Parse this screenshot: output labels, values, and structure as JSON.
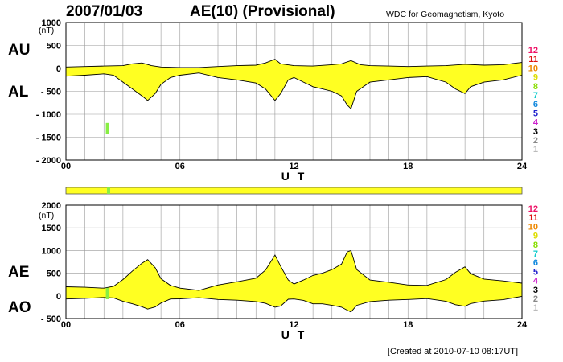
{
  "header": {
    "date": "2007/01/03",
    "title": "AE(10) (Provisional)",
    "source": "WDC for Geomagnetism, Kyoto"
  },
  "footer": {
    "created": "[Created at 2010-07-10 08:17UT]"
  },
  "colors": {
    "fill": "#ffff22",
    "bar": "#ffff22",
    "highlight": "#88ee44",
    "grid": "#999999",
    "line": "#000000"
  },
  "chart_data": [
    {
      "type": "area",
      "labels": {
        "upper": "AU",
        "lower": "AL",
        "unit": "(nT)",
        "xlabel": "U T"
      },
      "xlim": [
        0,
        24
      ],
      "ylim": [
        -2000,
        1000
      ],
      "x_ticks": [
        "00",
        "06",
        "12",
        "18",
        "24"
      ],
      "y_ticks": [
        {
          "v": 1000,
          "t": "1000"
        },
        {
          "v": 500,
          "t": "500"
        },
        {
          "v": 0,
          "t": "0"
        },
        {
          "v": -500,
          "t": "- 500"
        },
        {
          "v": -1000,
          "t": "- 1000"
        },
        {
          "v": -1500,
          "t": "- 1500"
        },
        {
          "v": -2000,
          "t": "- 2000"
        }
      ],
      "series": [
        {
          "name": "AU",
          "x": [
            0,
            1,
            2,
            3,
            3.5,
            4,
            4.5,
            5,
            6,
            7,
            8,
            9,
            10,
            10.5,
            11,
            11.3,
            12,
            13,
            14,
            14.5,
            15,
            15.5,
            16,
            17,
            18,
            19,
            20,
            21,
            22,
            23,
            24
          ],
          "y": [
            30,
            40,
            50,
            60,
            100,
            120,
            60,
            30,
            20,
            20,
            40,
            60,
            70,
            120,
            200,
            100,
            60,
            50,
            80,
            100,
            170,
            80,
            60,
            50,
            40,
            50,
            60,
            90,
            70,
            80,
            130
          ]
        },
        {
          "name": "AL",
          "x": [
            0,
            1,
            2,
            2.5,
            3,
            3.5,
            4,
            4.3,
            4.7,
            5,
            5.5,
            6,
            7,
            8,
            9,
            10,
            10.5,
            11,
            11.3,
            11.7,
            12,
            12.5,
            13,
            13.5,
            14,
            14.5,
            14.8,
            15,
            15.3,
            16,
            17,
            18,
            19,
            20,
            20.5,
            21,
            21.3,
            22,
            23,
            24
          ],
          "y": [
            -170,
            -150,
            -120,
            -150,
            -300,
            -450,
            -600,
            -700,
            -550,
            -350,
            -200,
            -150,
            -100,
            -200,
            -250,
            -320,
            -450,
            -700,
            -550,
            -250,
            -200,
            -300,
            -400,
            -450,
            -500,
            -600,
            -800,
            -880,
            -500,
            -300,
            -250,
            -200,
            -180,
            -300,
            -450,
            -550,
            -400,
            -300,
            -250,
            -150
          ]
        }
      ]
    },
    {
      "type": "area",
      "labels": {
        "upper": "AE",
        "lower": "AO",
        "unit": "(nT)",
        "xlabel": "U T"
      },
      "xlim": [
        0,
        24
      ],
      "ylim": [
        -500,
        2000
      ],
      "x_ticks": [
        "00",
        "06",
        "12",
        "18",
        "24"
      ],
      "y_ticks": [
        {
          "v": 2000,
          "t": "2000"
        },
        {
          "v": 1500,
          "t": "1500"
        },
        {
          "v": 1000,
          "t": "1000"
        },
        {
          "v": 500,
          "t": "500"
        },
        {
          "v": 0,
          "t": "0"
        },
        {
          "v": -500,
          "t": "- 500"
        }
      ],
      "series": [
        {
          "name": "AE",
          "x": [
            0,
            1,
            2,
            2.5,
            3,
            3.5,
            4,
            4.3,
            4.7,
            5,
            5.5,
            6,
            7,
            8,
            9,
            10,
            10.5,
            11,
            11.3,
            11.7,
            12,
            12.5,
            13,
            13.5,
            14,
            14.5,
            14.8,
            15,
            15.3,
            16,
            17,
            18,
            19,
            20,
            20.5,
            21,
            21.3,
            22,
            23,
            24
          ],
          "y": [
            200,
            190,
            170,
            210,
            360,
            550,
            720,
            800,
            620,
            380,
            230,
            170,
            120,
            240,
            310,
            390,
            570,
            900,
            650,
            350,
            260,
            350,
            450,
            500,
            580,
            700,
            970,
            1000,
            580,
            350,
            300,
            240,
            230,
            360,
            520,
            640,
            490,
            370,
            330,
            280
          ]
        },
        {
          "name": "AO",
          "x": [
            0,
            1,
            2,
            2.5,
            3,
            3.5,
            4,
            4.3,
            4.7,
            5,
            5.5,
            6,
            7,
            8,
            9,
            10,
            10.5,
            11,
            11.3,
            11.7,
            12,
            12.5,
            13,
            13.5,
            14,
            14.5,
            14.8,
            15,
            15.3,
            16,
            17,
            18,
            19,
            20,
            20.5,
            21,
            21.3,
            22,
            23,
            24
          ],
          "y": [
            -70,
            -55,
            -35,
            -45,
            -120,
            -175,
            -240,
            -290,
            -245,
            -160,
            -70,
            -65,
            -40,
            -80,
            -95,
            -125,
            -165,
            -250,
            -225,
            -75,
            -70,
            -100,
            -175,
            -175,
            -210,
            -250,
            -315,
            -355,
            -210,
            -125,
            -95,
            -80,
            -60,
            -120,
            -195,
            -230,
            -170,
            -115,
            -85,
            -10
          ]
        }
      ]
    }
  ],
  "station_counts": {
    "panel1": [
      "12",
      "11",
      "10",
      "9",
      "8",
      "7",
      "6",
      "5",
      "4",
      "3",
      "2",
      "1"
    ],
    "panel2": [
      "12",
      "11",
      "10",
      "9",
      "8",
      "7",
      "6",
      "5",
      "4",
      "3",
      "2",
      "1"
    ],
    "colors": [
      "#ee1166",
      "#dd1111",
      "#ee8800",
      "#dddd00",
      "#88dd00",
      "#11cccc",
      "#1188dd",
      "#2222cc",
      "#cc22cc",
      "#000000",
      "#888888",
      "#bbbbbb"
    ]
  }
}
